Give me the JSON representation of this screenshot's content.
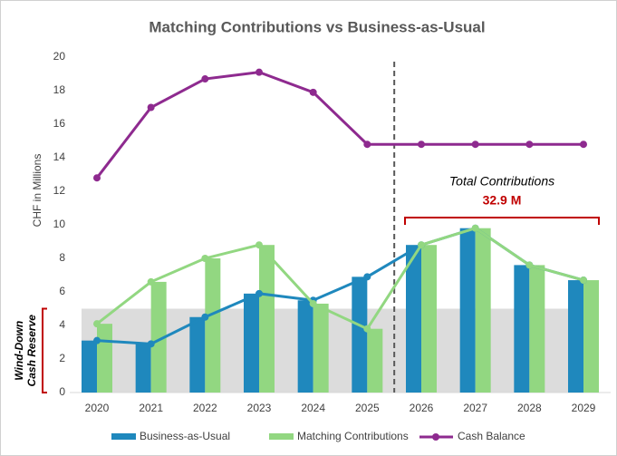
{
  "chart_data": {
    "type": "bar_line",
    "title": "Matching Contributions vs Business-as-Usual",
    "y_label": "CHF in Millions",
    "categories": [
      "2020",
      "2021",
      "2022",
      "2023",
      "2024",
      "2025",
      "2026",
      "2027",
      "2028",
      "2029"
    ],
    "series": [
      {
        "name": "Business-as-Usual",
        "color": "#1f88bd",
        "kind": "bar_line",
        "values": [
          3.1,
          2.9,
          4.5,
          5.9,
          5.5,
          6.9,
          8.8,
          9.8,
          7.6,
          6.7
        ]
      },
      {
        "name": "Matching Contributions",
        "color": "#92d781",
        "kind": "bar_line",
        "values": [
          4.1,
          6.6,
          8.0,
          8.8,
          5.3,
          3.8,
          8.8,
          9.8,
          7.6,
          6.7
        ]
      },
      {
        "name": "Cash Balance",
        "color": "#8e2a8f",
        "kind": "line",
        "values": [
          12.8,
          17.0,
          18.7,
          19.1,
          17.9,
          14.8,
          14.8,
          14.8,
          14.8,
          14.8
        ]
      }
    ],
    "reserve": {
      "value": 5,
      "label_lines": [
        "Wind-Down",
        "Cash Reserve"
      ],
      "color": "#dcdcdc"
    },
    "total": {
      "title": "Total Contributions",
      "value": 32.9,
      "label": "32.9 M",
      "color": "#c00000"
    },
    "ylim": [
      0,
      20
    ],
    "yticks": [
      0,
      2,
      4,
      6,
      8,
      10,
      12,
      14,
      16,
      18,
      20
    ]
  }
}
